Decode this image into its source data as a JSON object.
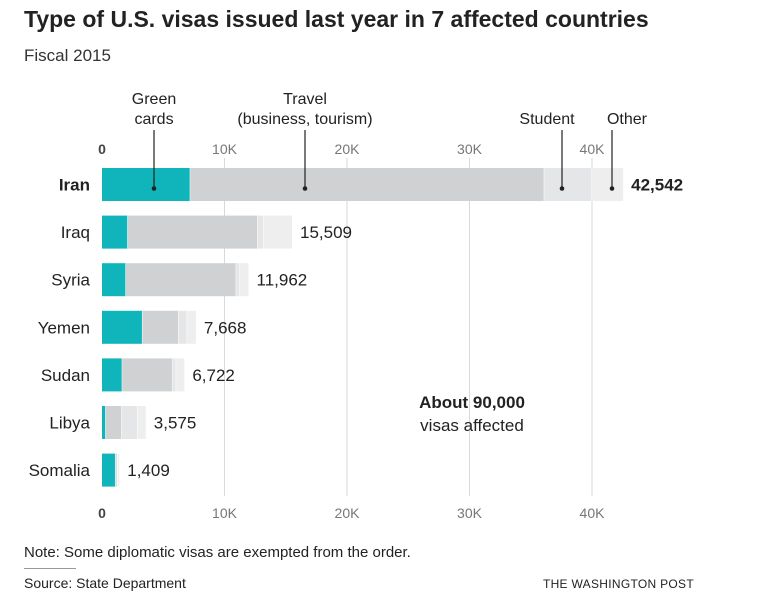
{
  "header": {
    "title": "Type of U.S. visas issued last year in 7 affected countries",
    "subtitle": "Fiscal 2015"
  },
  "chart_data": {
    "type": "bar",
    "orientation": "horizontal",
    "stacked": true,
    "categories": [
      "Iran",
      "Iraq",
      "Syria",
      "Yemen",
      "Sudan",
      "Libya",
      "Somalia"
    ],
    "highlight_category": "Iran",
    "totals": [
      42542,
      15509,
      11962,
      7668,
      6722,
      3575,
      1409
    ],
    "total_labels": [
      "42,542",
      "15,509",
      "11,962",
      "7,668",
      "6,722",
      "3,575",
      "1,409"
    ],
    "series": [
      {
        "name": "Green cards",
        "label_lines": [
          "Green",
          "cards"
        ],
        "color": "#10b5bb",
        "values": [
          7200,
          2100,
          1950,
          3300,
          1650,
          300,
          1100
        ]
      },
      {
        "name": "Travel (business, tourism)",
        "label_lines": [
          "Travel",
          "(business, tourism)"
        ],
        "color": "#cfd1d3",
        "values": [
          28900,
          10600,
          9000,
          2950,
          4100,
          1300,
          150
        ]
      },
      {
        "name": "Student",
        "label_lines": [
          "Student"
        ],
        "color": "#e5e6e7",
        "values": [
          3900,
          500,
          300,
          700,
          300,
          1300,
          50
        ]
      },
      {
        "name": "Other",
        "label_lines": [
          "Other"
        ],
        "color": "#eeeeef",
        "values": [
          2542,
          2309,
          712,
          718,
          672,
          675,
          109
        ]
      }
    ],
    "xlim": [
      0,
      45000
    ],
    "xticks": [
      0,
      10000,
      20000,
      30000,
      40000
    ],
    "xtick_labels": [
      "0",
      "10K",
      "20K",
      "30K",
      "40K"
    ],
    "grid": true,
    "annotation": {
      "bold": "About 90,000",
      "text": "visas affected"
    }
  },
  "footer": {
    "note": "Note: Some diplomatic visas are exempted from the order.",
    "source": "Source: State Department",
    "credit": "THE WASHINGTON POST"
  }
}
